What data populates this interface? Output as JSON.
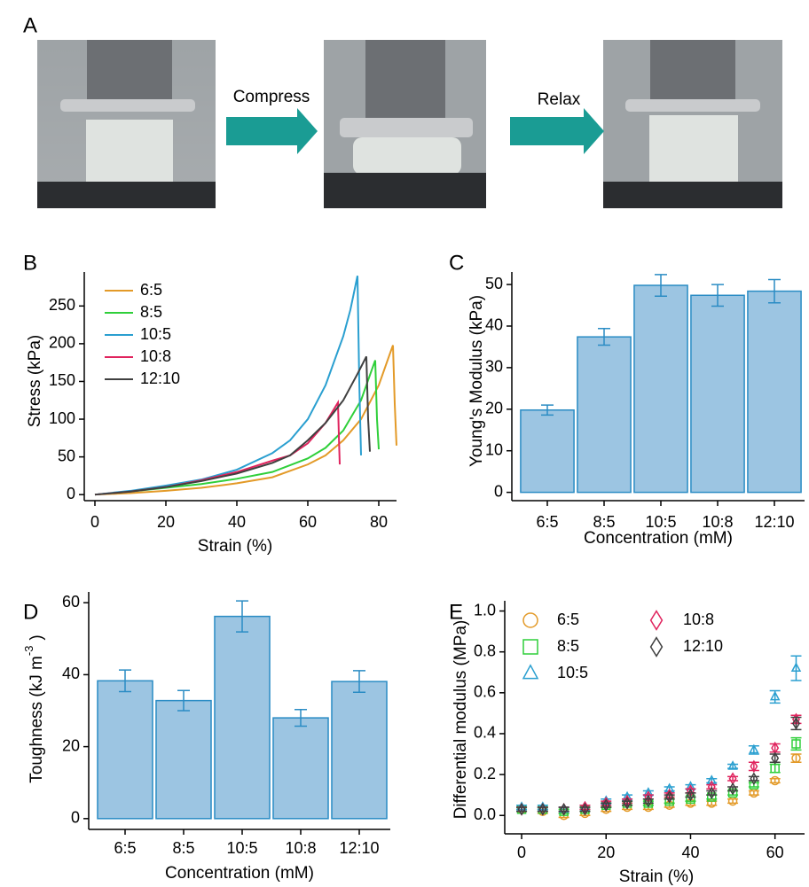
{
  "panel_a": {
    "label": "A",
    "steps": [
      "Compress",
      "Relax"
    ]
  },
  "chart_data": [
    {
      "type": "line",
      "panel": "B",
      "x_label": "Strain (%)",
      "y_label": "Stress (kPa)",
      "xlim": [
        -3,
        85
      ],
      "xticks": [
        0,
        20,
        40,
        60,
        80
      ],
      "ylim": [
        -8,
        295
      ],
      "yticks": [
        0,
        50,
        100,
        150,
        200,
        250
      ],
      "series": [
        {
          "name": "6:5",
          "color": "#e39a28",
          "x": [
            0,
            10,
            20,
            30,
            40,
            50,
            60,
            65,
            70,
            75,
            80,
            83,
            84,
            84.5,
            85
          ],
          "values": [
            0,
            2,
            5,
            9,
            15,
            23,
            40,
            52,
            72,
            100,
            145,
            185,
            198,
            120,
            65
          ]
        },
        {
          "name": "8:5",
          "color": "#2fcf3a",
          "x": [
            0,
            10,
            20,
            30,
            40,
            50,
            60,
            65,
            70,
            75,
            78,
            79,
            79.5,
            80
          ],
          "values": [
            0,
            4,
            9,
            14,
            21,
            30,
            48,
            62,
            85,
            125,
            165,
            178,
            100,
            60
          ]
        },
        {
          "name": "10:5",
          "color": "#2a9fd0",
          "x": [
            0,
            10,
            20,
            30,
            40,
            50,
            55,
            60,
            65,
            70,
            72,
            74,
            74.5,
            75
          ],
          "values": [
            0,
            5,
            12,
            20,
            33,
            55,
            72,
            100,
            145,
            210,
            245,
            290,
            150,
            52
          ]
        },
        {
          "name": "10:8",
          "color": "#e0245e",
          "x": [
            0,
            10,
            20,
            30,
            40,
            50,
            55,
            60,
            65,
            68.5,
            68.8,
            69
          ],
          "values": [
            0,
            4,
            10,
            19,
            30,
            45,
            52,
            68,
            95,
            122,
            70,
            40
          ]
        },
        {
          "name": "12:10",
          "color": "#404040",
          "x": [
            0,
            10,
            20,
            30,
            40,
            50,
            54,
            55,
            60,
            65,
            70,
            74,
            76.5,
            77,
            77.5
          ],
          "values": [
            0,
            4,
            10,
            18,
            28,
            42,
            50,
            52,
            72,
            95,
            125,
            160,
            183,
            100,
            57
          ]
        }
      ]
    },
    {
      "type": "bar",
      "panel": "C",
      "x_label": "Concentration (mM)",
      "y_label": "Young's Modulus (kPa)",
      "categories": [
        "6:5",
        "8:5",
        "10:5",
        "10:8",
        "12:10"
      ],
      "values": [
        19.8,
        37.4,
        49.8,
        47.4,
        48.4
      ],
      "errors": [
        1.2,
        2,
        2.6,
        2.6,
        2.8
      ],
      "color": "#9cc5e2",
      "edge_color": "#2a8cc4",
      "ylim": [
        -2,
        53
      ],
      "yticks": [
        0,
        10,
        20,
        30,
        40,
        50
      ]
    },
    {
      "type": "bar",
      "panel": "D",
      "x_label": "Concentration (mM)",
      "y_label": {
        "text": "Toughness (kJ m",
        "sup": "-3",
        "end": ")"
      },
      "categories": [
        "6:5",
        "8:5",
        "10:5",
        "10:8",
        "12:10"
      ],
      "values": [
        38.3,
        32.8,
        56.2,
        28,
        38.1
      ],
      "errors": [
        3,
        2.8,
        4.3,
        2.3,
        3
      ],
      "color": "#9cc5e2",
      "edge_color": "#2a8cc4",
      "ylim": [
        -3,
        63
      ],
      "yticks": [
        0,
        20,
        40,
        60
      ]
    },
    {
      "type": "scatter",
      "panel": "E",
      "x_label": "Strain (%)",
      "y_label": "Differential modulus (MPa)",
      "xlim": [
        -4,
        67
      ],
      "xticks": [
        0,
        20,
        40,
        60
      ],
      "ylim": [
        -0.09,
        1.05
      ],
      "yticks": [
        {
          "value": 0,
          "label": "0.0"
        },
        0.2,
        0.4,
        0.6,
        0.8,
        {
          "value": 1,
          "label": "1.0"
        }
      ],
      "x": [
        0,
        5,
        10,
        15,
        20,
        25,
        30,
        35,
        40,
        45,
        50,
        55,
        60,
        65
      ],
      "series": [
        {
          "name": "6:5",
          "color": "#e39a28",
          "marker": "circle",
          "values": [
            0.03,
            0.02,
            0.0,
            0.01,
            0.03,
            0.04,
            0.04,
            0.05,
            0.06,
            0.06,
            0.07,
            0.11,
            0.17,
            0.28
          ],
          "errors": [
            0.01,
            0.01,
            0.01,
            0.01,
            0.01,
            0.01,
            0.01,
            0.01,
            0.01,
            0.01,
            0.01,
            0.01,
            0.01,
            0.02
          ]
        },
        {
          "name": "8:5",
          "color": "#2fcf3a",
          "marker": "square",
          "values": [
            0.03,
            0.03,
            0.02,
            0.03,
            0.05,
            0.06,
            0.06,
            0.07,
            0.08,
            0.09,
            0.11,
            0.15,
            0.23,
            0.35
          ],
          "errors": [
            0.01,
            0.01,
            0.01,
            0.01,
            0.01,
            0.01,
            0.01,
            0.01,
            0.01,
            0.01,
            0.01,
            0.01,
            0.02,
            0.03
          ]
        },
        {
          "name": "10:5",
          "color": "#2a9fd0",
          "marker": "triangle",
          "values": [
            0.04,
            0.04,
            0.03,
            0.04,
            0.07,
            0.09,
            0.11,
            0.13,
            0.14,
            0.17,
            0.24,
            0.32,
            0.58,
            0.72
          ],
          "errors": [
            0.01,
            0.01,
            0.01,
            0.01,
            0.01,
            0.01,
            0.01,
            0.01,
            0.01,
            0.01,
            0.01,
            0.02,
            0.03,
            0.06
          ]
        },
        {
          "name": "10:8",
          "color": "#e0245e",
          "marker": "diamond",
          "values": [
            0.03,
            0.03,
            0.03,
            0.04,
            0.06,
            0.07,
            0.09,
            0.1,
            0.12,
            0.14,
            0.18,
            0.24,
            0.33,
            0.47
          ],
          "errors": [
            0.01,
            0.01,
            0.01,
            0.01,
            0.01,
            0.01,
            0.01,
            0.01,
            0.01,
            0.01,
            0.01,
            0.02,
            0.02,
            0.02
          ]
        },
        {
          "name": "12:10",
          "color": "#404040",
          "marker": "diamond",
          "values": [
            0.03,
            0.03,
            0.03,
            0.03,
            0.05,
            0.06,
            0.07,
            0.09,
            0.1,
            0.11,
            0.13,
            0.18,
            0.28,
            0.45
          ],
          "errors": [
            0.01,
            0.01,
            0.01,
            0.01,
            0.01,
            0.01,
            0.01,
            0.01,
            0.01,
            0.01,
            0.01,
            0.01,
            0.02,
            0.03
          ]
        }
      ]
    }
  ]
}
